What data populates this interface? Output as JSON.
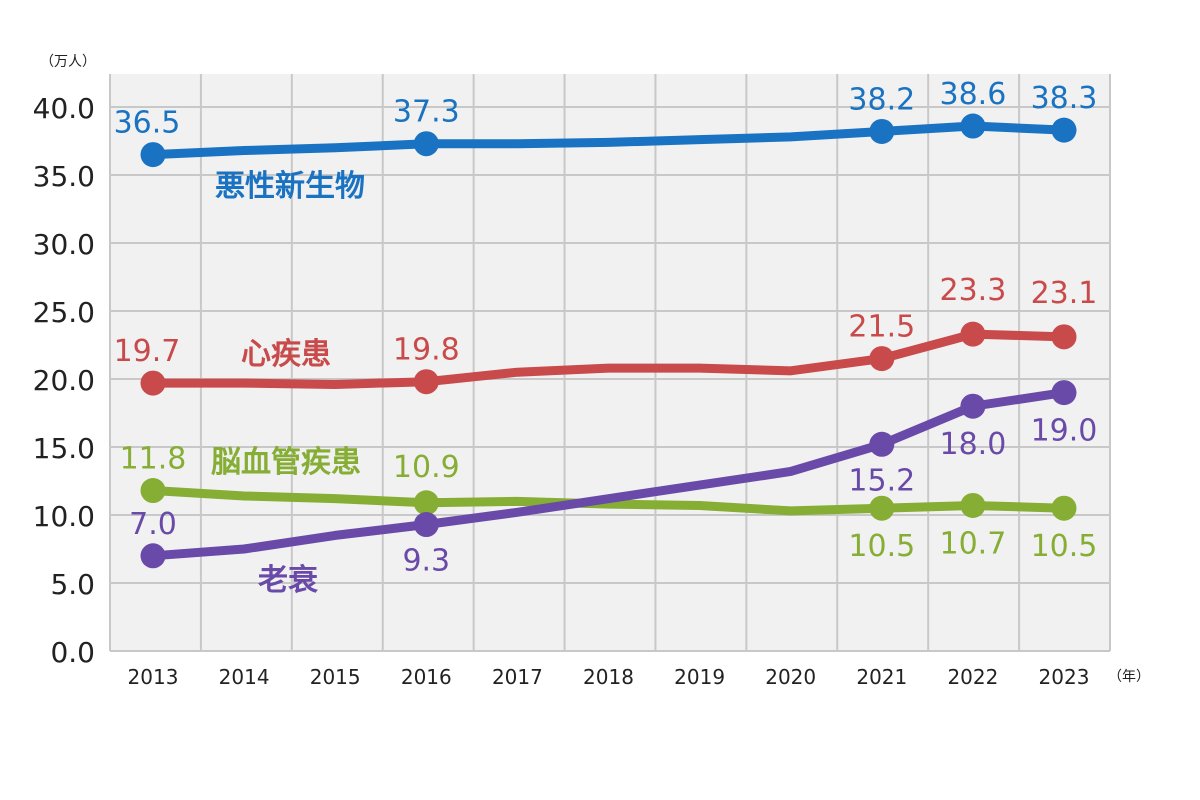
{
  "chart_data": {
    "type": "line",
    "y_unit": "（万人）",
    "x_unit": "（年）",
    "x": [
      "2013",
      "2014",
      "2015",
      "2016",
      "2017",
      "2018",
      "2019",
      "2020",
      "2021",
      "2022",
      "2023"
    ],
    "y_ticks": [
      "0.0",
      "5.0",
      "10.0",
      "15.0",
      "20.0",
      "25.0",
      "30.0",
      "35.0",
      "40.0"
    ],
    "ylim": [
      0,
      40
    ],
    "grid": true,
    "series": [
      {
        "name": "悪性新生物",
        "color": "#1a73c2",
        "values": [
          36.5,
          36.8,
          37.0,
          37.3,
          37.3,
          37.4,
          37.6,
          37.8,
          38.2,
          38.6,
          38.3
        ],
        "labeled_index": [
          0,
          3,
          8,
          9,
          10
        ],
        "labels": [
          "36.5",
          "37.3",
          "38.2",
          "38.6",
          "38.3"
        ]
      },
      {
        "name": "心疾患",
        "color": "#c94a4a",
        "values": [
          19.7,
          19.7,
          19.6,
          19.8,
          20.5,
          20.8,
          20.8,
          20.6,
          21.5,
          23.3,
          23.1
        ],
        "labeled_index": [
          0,
          3,
          8,
          9,
          10
        ],
        "labels": [
          "19.7",
          "19.8",
          "21.5",
          "23.3",
          "23.1"
        ]
      },
      {
        "name": "脳血管疾患",
        "color": "#86ad34",
        "values": [
          11.8,
          11.4,
          11.2,
          10.9,
          11.0,
          10.8,
          10.7,
          10.3,
          10.5,
          10.7,
          10.5
        ],
        "labeled_index": [
          0,
          3,
          8,
          9,
          10
        ],
        "labels": [
          "11.8",
          "10.9",
          "10.5",
          "10.7",
          "10.5"
        ]
      },
      {
        "name": "老衰",
        "color": "#6a4aa8",
        "values": [
          7.0,
          7.5,
          8.5,
          9.3,
          10.2,
          11.2,
          12.2,
          13.2,
          15.2,
          18.0,
          19.0
        ],
        "labeled_index": [
          0,
          3,
          8,
          9,
          10
        ],
        "labels": [
          "7.0",
          "9.3",
          "15.2",
          "18.0",
          "19.0"
        ]
      }
    ]
  }
}
